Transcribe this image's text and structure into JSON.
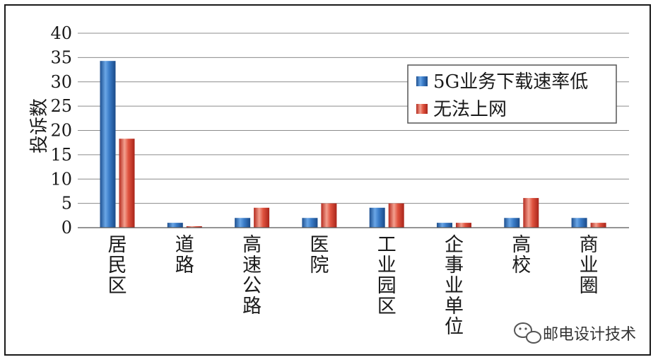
{
  "chart_data": {
    "type": "bar",
    "categories": [
      "居民区",
      "道路",
      "高速公路",
      "医院",
      "工业园区",
      "企事业单位",
      "高校",
      "商业圈"
    ],
    "series": [
      {
        "name": "5G业务下载速率低",
        "values": [
          34.3,
          1,
          2,
          2,
          4.1,
          1,
          2,
          2
        ],
        "color": "#2f6db3"
      },
      {
        "name": "无法上网",
        "values": [
          18.3,
          0.3,
          4.1,
          5,
          5,
          1,
          6.1,
          1
        ],
        "color": "#d23a2c"
      }
    ],
    "ylabel": "投诉数",
    "ylim": [
      0,
      40
    ],
    "yticks": [
      0,
      5,
      10,
      15,
      20,
      25,
      30,
      35,
      40
    ],
    "grid": true,
    "legend_position": "top-right"
  },
  "watermark": {
    "text": "邮电设计技术",
    "icon": "wechat-icon"
  }
}
